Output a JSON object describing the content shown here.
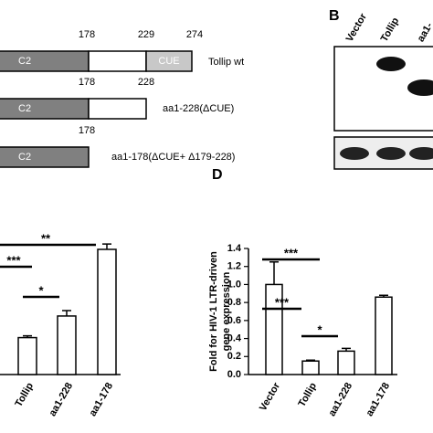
{
  "panel_a": {
    "rows": [
      {
        "positions": [
          "178",
          "229",
          "274"
        ],
        "domains": [
          "C2",
          "CUE"
        ],
        "label": "Tollip wt"
      },
      {
        "positions": [
          "178",
          "228"
        ],
        "domains": [
          "C2"
        ],
        "label": "aa1-228(ΔCUE)"
      },
      {
        "positions": [
          "178"
        ],
        "domains": [
          "C2"
        ],
        "label": "aa1-178(ΔCUE+ Δ179-228)"
      }
    ]
  },
  "panel_b": {
    "letter": "B",
    "lanes": [
      "Vector",
      "Tollip",
      "aa1-"
    ]
  },
  "chart_data": [
    {
      "type": "bar",
      "categories": [
        "Tollip",
        "aa1-228",
        "aa1-178"
      ],
      "values": [
        0.41,
        0.65,
        1.39
      ],
      "errors": [
        0.02,
        0.06,
        0.06
      ],
      "ylim": [
        0,
        1.4
      ],
      "annotations": [
        "**",
        "***",
        "*"
      ]
    },
    {
      "type": "bar",
      "panel_label": "D",
      "y_label": [
        "Fold for HIV-1  LTR-driven",
        "gene expression"
      ],
      "categories": [
        "Vector",
        "Tollip",
        "aa1-228",
        "aa1-178"
      ],
      "values": [
        1.0,
        0.15,
        0.26,
        0.86
      ],
      "errors": [
        0.25,
        0.01,
        0.03,
        0.02
      ],
      "ylim": [
        0,
        1.4
      ],
      "yticks": [
        {
          "value": 0,
          "label": "0.0"
        },
        0.2,
        0.4,
        0.6,
        0.8,
        {
          "value": 1,
          "label": "1.0"
        },
        1.2,
        1.4
      ],
      "annotations": [
        "***",
        "***",
        "*"
      ]
    }
  ]
}
